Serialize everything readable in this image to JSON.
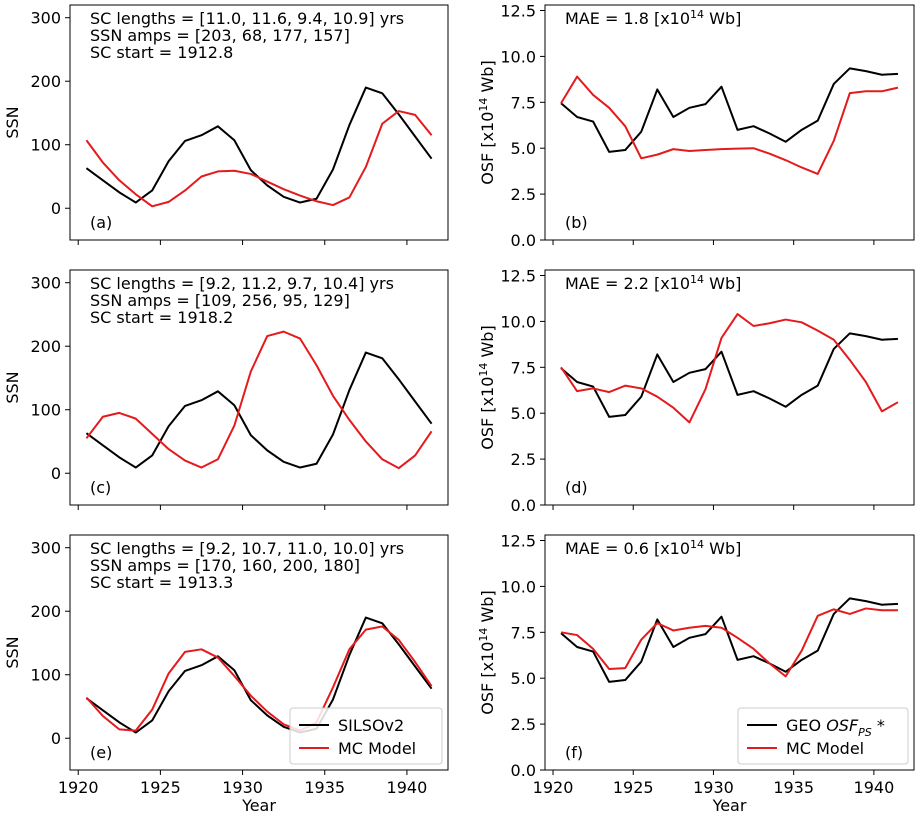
{
  "chart_data": [
    {
      "panel": "(a)",
      "type": "line",
      "xlabel": "",
      "ylabel": "SSN",
      "xlim": [
        1919.5,
        1942.5
      ],
      "ylim": [
        -50,
        320
      ],
      "yticks": [
        0,
        100,
        200,
        300
      ],
      "ytick_labels": [
        "0",
        "100",
        "200",
        "300"
      ],
      "xticks": [
        1920,
        1925,
        1930,
        1935,
        1940
      ],
      "xtick_labels": [
        "",
        "",
        "",
        "",
        ""
      ],
      "annotations": [
        "SC lengths = [11.0, 11.6, 9.4, 10.9] yrs",
        "SSN amps = [203, 68, 177, 157]",
        "SC start = 1912.8"
      ],
      "series": [
        {
          "color": "#000000",
          "x": [
            1920.5,
            1921.5,
            1922.5,
            1923.5,
            1924.5,
            1925.5,
            1926.5,
            1927.5,
            1928.5,
            1929.5,
            1930.5,
            1931.5,
            1932.5,
            1933.5,
            1934.5,
            1935.5,
            1936.5,
            1937.5,
            1938.5,
            1939.5,
            1940.5,
            1941.5
          ],
          "y": [
            63,
            44,
            25,
            9,
            28,
            74,
            106,
            115,
            129,
            107,
            60,
            36,
            18,
            9,
            15,
            61,
            131,
            190,
            181,
            148,
            113,
            78
          ]
        },
        {
          "color": "#e41a1c",
          "x": [
            1920.5,
            1921.5,
            1922.5,
            1923.5,
            1924.5,
            1925.5,
            1926.5,
            1927.5,
            1928.5,
            1929.5,
            1930.5,
            1931.5,
            1932.5,
            1933.5,
            1934.5,
            1935.5,
            1936.5,
            1937.5,
            1938.5,
            1939.5,
            1940.5,
            1941.5
          ],
          "y": [
            107,
            72,
            44,
            22,
            3,
            10,
            28,
            50,
            58,
            59,
            54,
            42,
            30,
            20,
            11,
            5,
            17,
            65,
            133,
            153,
            147,
            115
          ]
        }
      ]
    },
    {
      "panel": "(b)",
      "type": "line",
      "xlabel": "",
      "ylabel": "OSF [x10¹⁴ Wb]",
      "xlim": [
        1919.5,
        1942.5
      ],
      "ylim": [
        0,
        12.8
      ],
      "yticks": [
        0,
        2.5,
        5,
        7.5,
        10,
        12.5
      ],
      "ytick_labels": [
        "0.0",
        "2.5",
        "5.0",
        "7.5",
        "10.0",
        "12.5"
      ],
      "xticks": [
        1920,
        1925,
        1930,
        1935,
        1940
      ],
      "xtick_labels": [
        "",
        "",
        "",
        "",
        ""
      ],
      "annotations": [
        "MAE = 1.8 [x10¹⁴ Wb]"
      ],
      "series": [
        {
          "color": "#000000",
          "x": [
            1920.5,
            1921.5,
            1922.5,
            1923.5,
            1924.5,
            1925.5,
            1926.5,
            1927.5,
            1928.5,
            1929.5,
            1930.5,
            1931.5,
            1932.5,
            1933.5,
            1934.5,
            1935.5,
            1936.5,
            1937.5,
            1938.5,
            1939.5,
            1940.5,
            1941.5
          ],
          "y": [
            7.45,
            6.7,
            6.45,
            4.8,
            4.9,
            5.9,
            8.2,
            6.7,
            7.2,
            7.4,
            8.35,
            6.0,
            6.2,
            5.8,
            5.35,
            6.0,
            6.5,
            8.5,
            9.35,
            9.2,
            9.0,
            9.05
          ]
        },
        {
          "color": "#e41a1c",
          "x": [
            1920.5,
            1921.5,
            1922.5,
            1923.5,
            1924.5,
            1925.5,
            1926.5,
            1927.5,
            1928.5,
            1929.5,
            1930.5,
            1931.5,
            1932.5,
            1933.5,
            1934.5,
            1935.5,
            1936.5,
            1937.5,
            1938.5,
            1939.5,
            1940.5,
            1941.5
          ],
          "y": [
            7.45,
            8.9,
            7.9,
            7.2,
            6.2,
            4.45,
            4.65,
            4.95,
            4.85,
            4.9,
            4.95,
            4.98,
            5.0,
            4.7,
            4.35,
            3.95,
            3.6,
            5.4,
            8.0,
            8.1,
            8.1,
            8.3
          ]
        }
      ]
    },
    {
      "panel": "(c)",
      "type": "line",
      "xlabel": "",
      "ylabel": "SSN",
      "xlim": [
        1919.5,
        1942.5
      ],
      "ylim": [
        -50,
        320
      ],
      "yticks": [
        0,
        100,
        200,
        300
      ],
      "ytick_labels": [
        "0",
        "100",
        "200",
        "300"
      ],
      "xticks": [
        1920,
        1925,
        1930,
        1935,
        1940
      ],
      "xtick_labels": [
        "",
        "",
        "",
        "",
        ""
      ],
      "annotations": [
        "SC lengths = [9.2, 11.2, 9.7, 10.4] yrs",
        "SSN amps = [109, 256, 95, 129]",
        "SC start = 1918.2"
      ],
      "series": [
        {
          "color": "#000000",
          "x": [
            1920.5,
            1921.5,
            1922.5,
            1923.5,
            1924.5,
            1925.5,
            1926.5,
            1927.5,
            1928.5,
            1929.5,
            1930.5,
            1931.5,
            1932.5,
            1933.5,
            1934.5,
            1935.5,
            1936.5,
            1937.5,
            1938.5,
            1939.5,
            1940.5,
            1941.5
          ],
          "y": [
            63,
            44,
            25,
            9,
            28,
            74,
            106,
            115,
            129,
            107,
            60,
            36,
            18,
            9,
            15,
            61,
            131,
            190,
            181,
            148,
            113,
            78
          ]
        },
        {
          "color": "#e41a1c",
          "x": [
            1920.5,
            1921.5,
            1922.5,
            1923.5,
            1924.5,
            1925.5,
            1926.5,
            1927.5,
            1928.5,
            1929.5,
            1930.5,
            1931.5,
            1932.5,
            1933.5,
            1934.5,
            1935.5,
            1936.5,
            1937.5,
            1938.5,
            1939.5,
            1940.5,
            1941.5
          ],
          "y": [
            55,
            89,
            95,
            86,
            62,
            38,
            20,
            9,
            22,
            75,
            160,
            216,
            223,
            212,
            170,
            122,
            84,
            50,
            22,
            8,
            28,
            66
          ]
        }
      ]
    },
    {
      "panel": "(d)",
      "type": "line",
      "xlabel": "",
      "ylabel": "OSF [x10¹⁴ Wb]",
      "xlim": [
        1919.5,
        1942.5
      ],
      "ylim": [
        0,
        12.8
      ],
      "yticks": [
        0,
        2.5,
        5,
        7.5,
        10,
        12.5
      ],
      "ytick_labels": [
        "0.0",
        "2.5",
        "5.0",
        "7.5",
        "10.0",
        "12.5"
      ],
      "xticks": [
        1920,
        1925,
        1930,
        1935,
        1940
      ],
      "xtick_labels": [
        "",
        "",
        "",
        "",
        ""
      ],
      "annotations": [
        "MAE = 2.2 [x10¹⁴ Wb]"
      ],
      "series": [
        {
          "color": "#000000",
          "x": [
            1920.5,
            1921.5,
            1922.5,
            1923.5,
            1924.5,
            1925.5,
            1926.5,
            1927.5,
            1928.5,
            1929.5,
            1930.5,
            1931.5,
            1932.5,
            1933.5,
            1934.5,
            1935.5,
            1936.5,
            1937.5,
            1938.5,
            1939.5,
            1940.5,
            1941.5
          ],
          "y": [
            7.45,
            6.7,
            6.45,
            4.8,
            4.9,
            5.9,
            8.2,
            6.7,
            7.2,
            7.4,
            8.35,
            6.0,
            6.2,
            5.8,
            5.35,
            6.0,
            6.5,
            8.5,
            9.35,
            9.2,
            9.0,
            9.05
          ]
        },
        {
          "color": "#e41a1c",
          "x": [
            1920.5,
            1921.5,
            1922.5,
            1923.5,
            1924.5,
            1925.5,
            1926.5,
            1927.5,
            1928.5,
            1929.5,
            1930.5,
            1931.5,
            1932.5,
            1933.5,
            1934.5,
            1935.5,
            1936.5,
            1937.5,
            1938.5,
            1939.5,
            1940.5,
            1941.5
          ],
          "y": [
            7.5,
            6.2,
            6.35,
            6.15,
            6.5,
            6.35,
            5.9,
            5.3,
            4.5,
            6.3,
            9.1,
            10.4,
            9.75,
            9.9,
            10.1,
            9.95,
            9.5,
            9.0,
            7.9,
            6.7,
            5.1,
            5.6
          ]
        }
      ]
    },
    {
      "panel": "(e)",
      "type": "line",
      "xlabel": "Year",
      "ylabel": "SSN",
      "xlim": [
        1919.5,
        1942.5
      ],
      "ylim": [
        -50,
        320
      ],
      "yticks": [
        0,
        100,
        200,
        300
      ],
      "ytick_labels": [
        "0",
        "100",
        "200",
        "300"
      ],
      "xticks": [
        1920,
        1925,
        1930,
        1935,
        1940
      ],
      "xtick_labels": [
        "1920",
        "1925",
        "1930",
        "1935",
        "1940"
      ],
      "annotations": [
        "SC lengths = [9.2, 10.7, 11.0, 10.0] yrs",
        "SSN amps = [170, 160, 200, 180]",
        "SC start = 1913.3"
      ],
      "legend": {
        "position": "lower-right"
      },
      "series": [
        {
          "name": "SILSOv2",
          "color": "#000000",
          "x": [
            1920.5,
            1921.5,
            1922.5,
            1923.5,
            1924.5,
            1925.5,
            1926.5,
            1927.5,
            1928.5,
            1929.5,
            1930.5,
            1931.5,
            1932.5,
            1933.5,
            1934.5,
            1935.5,
            1936.5,
            1937.5,
            1938.5,
            1939.5,
            1940.5,
            1941.5
          ],
          "y": [
            63,
            44,
            25,
            9,
            28,
            74,
            106,
            115,
            129,
            107,
            60,
            36,
            18,
            9,
            15,
            61,
            131,
            190,
            181,
            148,
            113,
            78
          ]
        },
        {
          "name": "MC Model",
          "color": "#e41a1c",
          "x": [
            1920.5,
            1921.5,
            1922.5,
            1923.5,
            1924.5,
            1925.5,
            1926.5,
            1927.5,
            1928.5,
            1929.5,
            1930.5,
            1931.5,
            1932.5,
            1933.5,
            1934.5,
            1935.5,
            1936.5,
            1937.5,
            1938.5,
            1939.5,
            1940.5,
            1941.5
          ],
          "y": [
            64,
            35,
            14,
            12,
            45,
            102,
            136,
            140,
            127,
            98,
            67,
            42,
            22,
            12,
            25,
            80,
            140,
            171,
            176,
            155,
            120,
            82
          ]
        }
      ]
    },
    {
      "panel": "(f)",
      "type": "line",
      "xlabel": "Year",
      "ylabel": "OSF [x10¹⁴ Wb]",
      "xlim": [
        1919.5,
        1942.5
      ],
      "ylim": [
        0,
        12.8
      ],
      "yticks": [
        0,
        2.5,
        5,
        7.5,
        10,
        12.5
      ],
      "ytick_labels": [
        "0.0",
        "2.5",
        "5.0",
        "7.5",
        "10.0",
        "12.5"
      ],
      "xticks": [
        1920,
        1925,
        1930,
        1935,
        1940
      ],
      "xtick_labels": [
        "1920",
        "1925",
        "1930",
        "1935",
        "1940"
      ],
      "annotations": [
        "MAE = 0.6 [x10¹⁴ Wb]"
      ],
      "legend": {
        "position": "lower-right"
      },
      "series": [
        {
          "name": "GEO OSF_PS *",
          "color": "#000000",
          "x": [
            1920.5,
            1921.5,
            1922.5,
            1923.5,
            1924.5,
            1925.5,
            1926.5,
            1927.5,
            1928.5,
            1929.5,
            1930.5,
            1931.5,
            1932.5,
            1933.5,
            1934.5,
            1935.5,
            1936.5,
            1937.5,
            1938.5,
            1939.5,
            1940.5,
            1941.5
          ],
          "y": [
            7.45,
            6.7,
            6.45,
            4.8,
            4.9,
            5.9,
            8.2,
            6.7,
            7.2,
            7.4,
            8.35,
            6.0,
            6.2,
            5.8,
            5.35,
            6.0,
            6.5,
            8.5,
            9.35,
            9.2,
            9.0,
            9.05
          ]
        },
        {
          "name": "MC Model",
          "color": "#e41a1c",
          "x": [
            1920.5,
            1921.5,
            1922.5,
            1923.5,
            1924.5,
            1925.5,
            1926.5,
            1927.5,
            1928.5,
            1929.5,
            1930.5,
            1931.5,
            1932.5,
            1933.5,
            1934.5,
            1935.5,
            1936.5,
            1937.5,
            1938.5,
            1939.5,
            1940.5,
            1941.5
          ],
          "y": [
            7.5,
            7.35,
            6.6,
            5.5,
            5.55,
            7.1,
            8.0,
            7.6,
            7.75,
            7.85,
            7.75,
            7.2,
            6.6,
            5.8,
            5.1,
            6.5,
            8.4,
            8.75,
            8.5,
            8.8,
            8.7,
            8.7
          ]
        }
      ]
    }
  ]
}
